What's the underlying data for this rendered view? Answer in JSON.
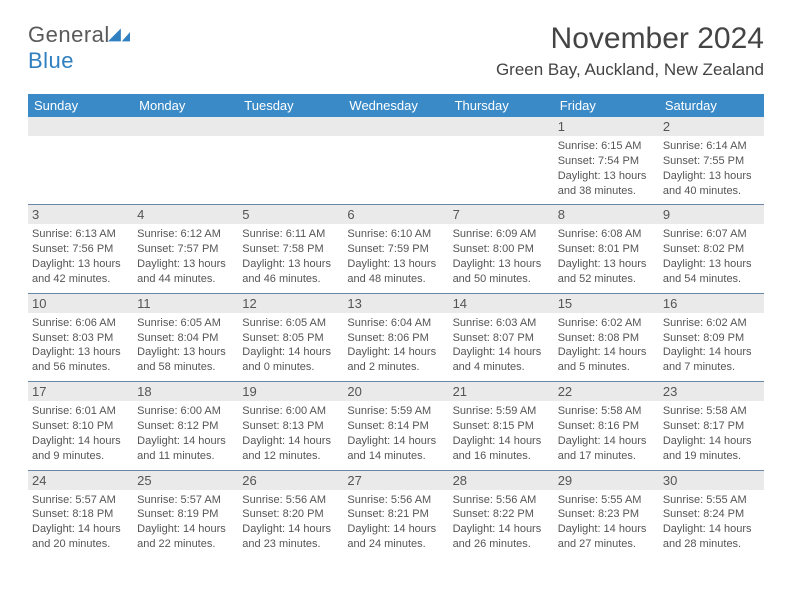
{
  "logo": {
    "general": "General",
    "blue": "Blue"
  },
  "header": {
    "month_title": "November 2024",
    "location": "Green Bay, Auckland, New Zealand"
  },
  "colors": {
    "header_bg": "#3a8ac8",
    "daynum_bg": "#eaeaea",
    "day_border": "#6b87a8",
    "logo_blue": "#2f7fc1",
    "text": "#555"
  },
  "dow": [
    "Sunday",
    "Monday",
    "Tuesday",
    "Wednesday",
    "Thursday",
    "Friday",
    "Saturday"
  ],
  "weeks": [
    [
      null,
      null,
      null,
      null,
      null,
      {
        "n": "1",
        "sr": "Sunrise: 6:15 AM",
        "ss": "Sunset: 7:54 PM",
        "d1": "Daylight: 13 hours",
        "d2": "and 38 minutes."
      },
      {
        "n": "2",
        "sr": "Sunrise: 6:14 AM",
        "ss": "Sunset: 7:55 PM",
        "d1": "Daylight: 13 hours",
        "d2": "and 40 minutes."
      }
    ],
    [
      {
        "n": "3",
        "sr": "Sunrise: 6:13 AM",
        "ss": "Sunset: 7:56 PM",
        "d1": "Daylight: 13 hours",
        "d2": "and 42 minutes."
      },
      {
        "n": "4",
        "sr": "Sunrise: 6:12 AM",
        "ss": "Sunset: 7:57 PM",
        "d1": "Daylight: 13 hours",
        "d2": "and 44 minutes."
      },
      {
        "n": "5",
        "sr": "Sunrise: 6:11 AM",
        "ss": "Sunset: 7:58 PM",
        "d1": "Daylight: 13 hours",
        "d2": "and 46 minutes."
      },
      {
        "n": "6",
        "sr": "Sunrise: 6:10 AM",
        "ss": "Sunset: 7:59 PM",
        "d1": "Daylight: 13 hours",
        "d2": "and 48 minutes."
      },
      {
        "n": "7",
        "sr": "Sunrise: 6:09 AM",
        "ss": "Sunset: 8:00 PM",
        "d1": "Daylight: 13 hours",
        "d2": "and 50 minutes."
      },
      {
        "n": "8",
        "sr": "Sunrise: 6:08 AM",
        "ss": "Sunset: 8:01 PM",
        "d1": "Daylight: 13 hours",
        "d2": "and 52 minutes."
      },
      {
        "n": "9",
        "sr": "Sunrise: 6:07 AM",
        "ss": "Sunset: 8:02 PM",
        "d1": "Daylight: 13 hours",
        "d2": "and 54 minutes."
      }
    ],
    [
      {
        "n": "10",
        "sr": "Sunrise: 6:06 AM",
        "ss": "Sunset: 8:03 PM",
        "d1": "Daylight: 13 hours",
        "d2": "and 56 minutes."
      },
      {
        "n": "11",
        "sr": "Sunrise: 6:05 AM",
        "ss": "Sunset: 8:04 PM",
        "d1": "Daylight: 13 hours",
        "d2": "and 58 minutes."
      },
      {
        "n": "12",
        "sr": "Sunrise: 6:05 AM",
        "ss": "Sunset: 8:05 PM",
        "d1": "Daylight: 14 hours",
        "d2": "and 0 minutes."
      },
      {
        "n": "13",
        "sr": "Sunrise: 6:04 AM",
        "ss": "Sunset: 8:06 PM",
        "d1": "Daylight: 14 hours",
        "d2": "and 2 minutes."
      },
      {
        "n": "14",
        "sr": "Sunrise: 6:03 AM",
        "ss": "Sunset: 8:07 PM",
        "d1": "Daylight: 14 hours",
        "d2": "and 4 minutes."
      },
      {
        "n": "15",
        "sr": "Sunrise: 6:02 AM",
        "ss": "Sunset: 8:08 PM",
        "d1": "Daylight: 14 hours",
        "d2": "and 5 minutes."
      },
      {
        "n": "16",
        "sr": "Sunrise: 6:02 AM",
        "ss": "Sunset: 8:09 PM",
        "d1": "Daylight: 14 hours",
        "d2": "and 7 minutes."
      }
    ],
    [
      {
        "n": "17",
        "sr": "Sunrise: 6:01 AM",
        "ss": "Sunset: 8:10 PM",
        "d1": "Daylight: 14 hours",
        "d2": "and 9 minutes."
      },
      {
        "n": "18",
        "sr": "Sunrise: 6:00 AM",
        "ss": "Sunset: 8:12 PM",
        "d1": "Daylight: 14 hours",
        "d2": "and 11 minutes."
      },
      {
        "n": "19",
        "sr": "Sunrise: 6:00 AM",
        "ss": "Sunset: 8:13 PM",
        "d1": "Daylight: 14 hours",
        "d2": "and 12 minutes."
      },
      {
        "n": "20",
        "sr": "Sunrise: 5:59 AM",
        "ss": "Sunset: 8:14 PM",
        "d1": "Daylight: 14 hours",
        "d2": "and 14 minutes."
      },
      {
        "n": "21",
        "sr": "Sunrise: 5:59 AM",
        "ss": "Sunset: 8:15 PM",
        "d1": "Daylight: 14 hours",
        "d2": "and 16 minutes."
      },
      {
        "n": "22",
        "sr": "Sunrise: 5:58 AM",
        "ss": "Sunset: 8:16 PM",
        "d1": "Daylight: 14 hours",
        "d2": "and 17 minutes."
      },
      {
        "n": "23",
        "sr": "Sunrise: 5:58 AM",
        "ss": "Sunset: 8:17 PM",
        "d1": "Daylight: 14 hours",
        "d2": "and 19 minutes."
      }
    ],
    [
      {
        "n": "24",
        "sr": "Sunrise: 5:57 AM",
        "ss": "Sunset: 8:18 PM",
        "d1": "Daylight: 14 hours",
        "d2": "and 20 minutes."
      },
      {
        "n": "25",
        "sr": "Sunrise: 5:57 AM",
        "ss": "Sunset: 8:19 PM",
        "d1": "Daylight: 14 hours",
        "d2": "and 22 minutes."
      },
      {
        "n": "26",
        "sr": "Sunrise: 5:56 AM",
        "ss": "Sunset: 8:20 PM",
        "d1": "Daylight: 14 hours",
        "d2": "and 23 minutes."
      },
      {
        "n": "27",
        "sr": "Sunrise: 5:56 AM",
        "ss": "Sunset: 8:21 PM",
        "d1": "Daylight: 14 hours",
        "d2": "and 24 minutes."
      },
      {
        "n": "28",
        "sr": "Sunrise: 5:56 AM",
        "ss": "Sunset: 8:22 PM",
        "d1": "Daylight: 14 hours",
        "d2": "and 26 minutes."
      },
      {
        "n": "29",
        "sr": "Sunrise: 5:55 AM",
        "ss": "Sunset: 8:23 PM",
        "d1": "Daylight: 14 hours",
        "d2": "and 27 minutes."
      },
      {
        "n": "30",
        "sr": "Sunrise: 5:55 AM",
        "ss": "Sunset: 8:24 PM",
        "d1": "Daylight: 14 hours",
        "d2": "and 28 minutes."
      }
    ]
  ]
}
